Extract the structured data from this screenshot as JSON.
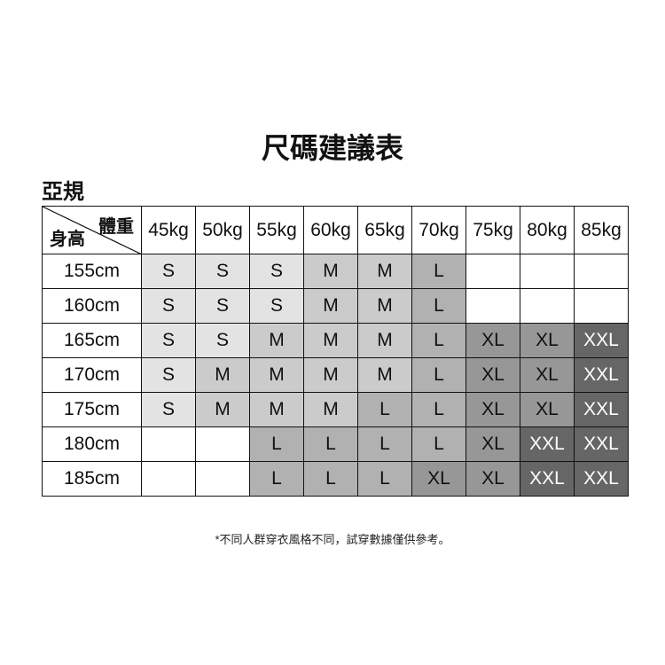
{
  "title": "尺碼建議表",
  "subtitle": "亞規",
  "table": {
    "corner_weight": "體重",
    "corner_height": "身高",
    "weights": [
      "45kg",
      "50kg",
      "55kg",
      "60kg",
      "65kg",
      "70kg",
      "75kg",
      "80kg",
      "85kg"
    ],
    "rows": [
      {
        "height": "155cm",
        "sizes": [
          "S",
          "S",
          "S",
          "M",
          "M",
          "L",
          "",
          "",
          ""
        ]
      },
      {
        "height": "160cm",
        "sizes": [
          "S",
          "S",
          "S",
          "M",
          "M",
          "L",
          "",
          "",
          ""
        ]
      },
      {
        "height": "165cm",
        "sizes": [
          "S",
          "S",
          "M",
          "M",
          "M",
          "L",
          "XL",
          "XL",
          "XXL"
        ]
      },
      {
        "height": "170cm",
        "sizes": [
          "S",
          "M",
          "M",
          "M",
          "M",
          "L",
          "XL",
          "XL",
          "XXL"
        ]
      },
      {
        "height": "175cm",
        "sizes": [
          "S",
          "M",
          "M",
          "M",
          "L",
          "L",
          "XL",
          "XL",
          "XXL"
        ]
      },
      {
        "height": "180cm",
        "sizes": [
          "",
          "",
          "L",
          "L",
          "L",
          "L",
          "XL",
          "XXL",
          "XXL"
        ]
      },
      {
        "height": "185cm",
        "sizes": [
          "",
          "",
          "L",
          "L",
          "L",
          "XL",
          "XL",
          "XXL",
          "XXL"
        ]
      }
    ]
  },
  "size_colors": {
    "S": "#e3e3e3",
    "M": "#cbcbcb",
    "L": "#b1b1b1",
    "XL": "#979797",
    "XXL": "#666666"
  },
  "size_text_colors": {
    "S": "#111111",
    "M": "#111111",
    "L": "#111111",
    "XL": "#111111",
    "XXL": "#ffffff"
  },
  "note": "*不同人群穿衣風格不同，試穿數據僅供參考。"
}
